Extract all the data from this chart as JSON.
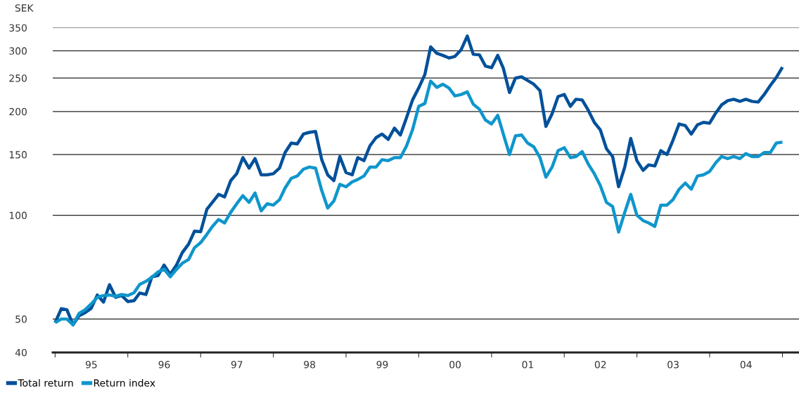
{
  "chart_data": {
    "type": "line",
    "ylabel": "SEK",
    "log": true,
    "grid": "y",
    "legend": "bottom left",
    "line_style": "solid",
    "ylim": [
      40,
      350
    ],
    "yticks": [
      40,
      50,
      100,
      150,
      200,
      250,
      300,
      350
    ],
    "xlim": [
      "1994-12-20",
      "2005-03-25"
    ],
    "xticks": [
      {
        "value": "1995-01-01",
        "label": null
      },
      {
        "value": "1995-07-02",
        "label": "95"
      },
      {
        "value": "1996-01-01",
        "label": null
      },
      {
        "value": "1996-07-02",
        "label": "96"
      },
      {
        "value": "1997-01-01",
        "label": null
      },
      {
        "value": "1997-07-02",
        "label": "97"
      },
      {
        "value": "1998-01-01",
        "label": null
      },
      {
        "value": "1998-07-02",
        "label": "98"
      },
      {
        "value": "1999-01-01",
        "label": null
      },
      {
        "value": "1999-07-02",
        "label": "99"
      },
      {
        "value": "2000-01-01",
        "label": null
      },
      {
        "value": "2000-07-02",
        "label": "00"
      },
      {
        "value": "2001-01-01",
        "label": null
      },
      {
        "value": "2001-07-02",
        "label": "01"
      },
      {
        "value": "2002-01-01",
        "label": null
      },
      {
        "value": "2002-07-02",
        "label": "02"
      },
      {
        "value": "2003-01-01",
        "label": null
      },
      {
        "value": "2003-07-02",
        "label": "03"
      },
      {
        "value": "2004-01-01",
        "label": null
      },
      {
        "value": "2004-07-02",
        "label": "04"
      },
      {
        "value": "2005-01-01",
        "label": null
      }
    ],
    "x": [
      "1995-01",
      "1995-02",
      "1995-03",
      "1995-04",
      "1995-05",
      "1995-06",
      "1995-07",
      "1995-08",
      "1995-09",
      "1995-10",
      "1995-11",
      "1995-12",
      "1996-01",
      "1996-02",
      "1996-03",
      "1996-04",
      "1996-05",
      "1996-06",
      "1996-07",
      "1996-08",
      "1996-09",
      "1996-10",
      "1996-11",
      "1996-12",
      "1997-01",
      "1997-02",
      "1997-03",
      "1997-04",
      "1997-05",
      "1997-06",
      "1997-07",
      "1997-08",
      "1997-09",
      "1997-10",
      "1997-11",
      "1997-12",
      "1998-01",
      "1998-02",
      "1998-03",
      "1998-04",
      "1998-05",
      "1998-06",
      "1998-07",
      "1998-08",
      "1998-09",
      "1998-10",
      "1998-11",
      "1998-12",
      "1999-01",
      "1999-02",
      "1999-03",
      "1999-04",
      "1999-05",
      "1999-06",
      "1999-07",
      "1999-08",
      "1999-09",
      "1999-10",
      "1999-11",
      "1999-12",
      "2000-01",
      "2000-02",
      "2000-03",
      "2000-04",
      "2000-05",
      "2000-06",
      "2000-07",
      "2000-08",
      "2000-09",
      "2000-10",
      "2000-11",
      "2000-12",
      "2001-01",
      "2001-02",
      "2001-03",
      "2001-04",
      "2001-05",
      "2001-06",
      "2001-07",
      "2001-08",
      "2001-09",
      "2001-10",
      "2001-11",
      "2001-12",
      "2002-01",
      "2002-02",
      "2002-03",
      "2002-04",
      "2002-05",
      "2002-06",
      "2002-07",
      "2002-08",
      "2002-09",
      "2002-10",
      "2002-11",
      "2002-12",
      "2003-01",
      "2003-02",
      "2003-03",
      "2003-04",
      "2003-05",
      "2003-06",
      "2003-07",
      "2003-08",
      "2003-09",
      "2003-10",
      "2003-11",
      "2003-12",
      "2004-01",
      "2004-02",
      "2004-03",
      "2004-04",
      "2004-05",
      "2004-06",
      "2004-07",
      "2004-08",
      "2004-09",
      "2004-10",
      "2004-11",
      "2004-12",
      "2005-01"
    ],
    "series": [
      {
        "name": "Total return",
        "color": "#00509a",
        "values": [
          48.8,
          53.6,
          53.2,
          48.1,
          51.1,
          52.2,
          53.7,
          58.7,
          56.0,
          62.9,
          57.8,
          58.5,
          56.2,
          56.5,
          59.5,
          58.9,
          66.3,
          66.9,
          71.7,
          67.4,
          71.6,
          78.0,
          82.4,
          89.9,
          89.6,
          104,
          109,
          115,
          113,
          126,
          132,
          147,
          137,
          146,
          131,
          131,
          132,
          137,
          152,
          162,
          161,
          172,
          174,
          175,
          145,
          131,
          126,
          148,
          133,
          131,
          147,
          144,
          159,
          168,
          172,
          166,
          179,
          171,
          192,
          216,
          234,
          256,
          308,
          295,
          291,
          286,
          289,
          302,
          331,
          293,
          292,
          271,
          268,
          291,
          267,
          227,
          250,
          252,
          246,
          240,
          230,
          181,
          197,
          221,
          224,
          207,
          217,
          216,
          202,
          186,
          177,
          156,
          148,
          121,
          138,
          167,
          144,
          135,
          140,
          139,
          154,
          150,
          165,
          184,
          182,
          172,
          183,
          186,
          185,
          198,
          209,
          215,
          217,
          214,
          217,
          214,
          213,
          224,
          238,
          251,
          269
        ]
      },
      {
        "name": "Return index",
        "color": "#0f96cc",
        "values": [
          48.8,
          50.0,
          50.0,
          48.1,
          51.9,
          53.2,
          55.3,
          57.8,
          58.5,
          58.7,
          58.2,
          58.9,
          58.5,
          59.6,
          63.0,
          64.3,
          66.1,
          68.5,
          69.8,
          66.3,
          69.6,
          72.6,
          74.4,
          80.5,
          83.3,
          88.0,
          92.8,
          97.2,
          95.0,
          102,
          108,
          114,
          109,
          116,
          103,
          108,
          107,
          111,
          120,
          128,
          130,
          136,
          138,
          137,
          118,
          105,
          110,
          123,
          121,
          125,
          127,
          130,
          138,
          138,
          145,
          144,
          147,
          147,
          159,
          177,
          207,
          211,
          245,
          235,
          240,
          234,
          222,
          224,
          228,
          210,
          203,
          189,
          184,
          195,
          172,
          150,
          170,
          171,
          162,
          158,
          147,
          129,
          138,
          154,
          157,
          147,
          148,
          153,
          141,
          132,
          122,
          109,
          106,
          89.4,
          102,
          115,
          100,
          96.5,
          95.0,
          92.8,
          107,
          107,
          111,
          119,
          124,
          119,
          130,
          131,
          134,
          142,
          148,
          146,
          148,
          146,
          151,
          148,
          148,
          152,
          152,
          162,
          163
        ]
      }
    ]
  }
}
